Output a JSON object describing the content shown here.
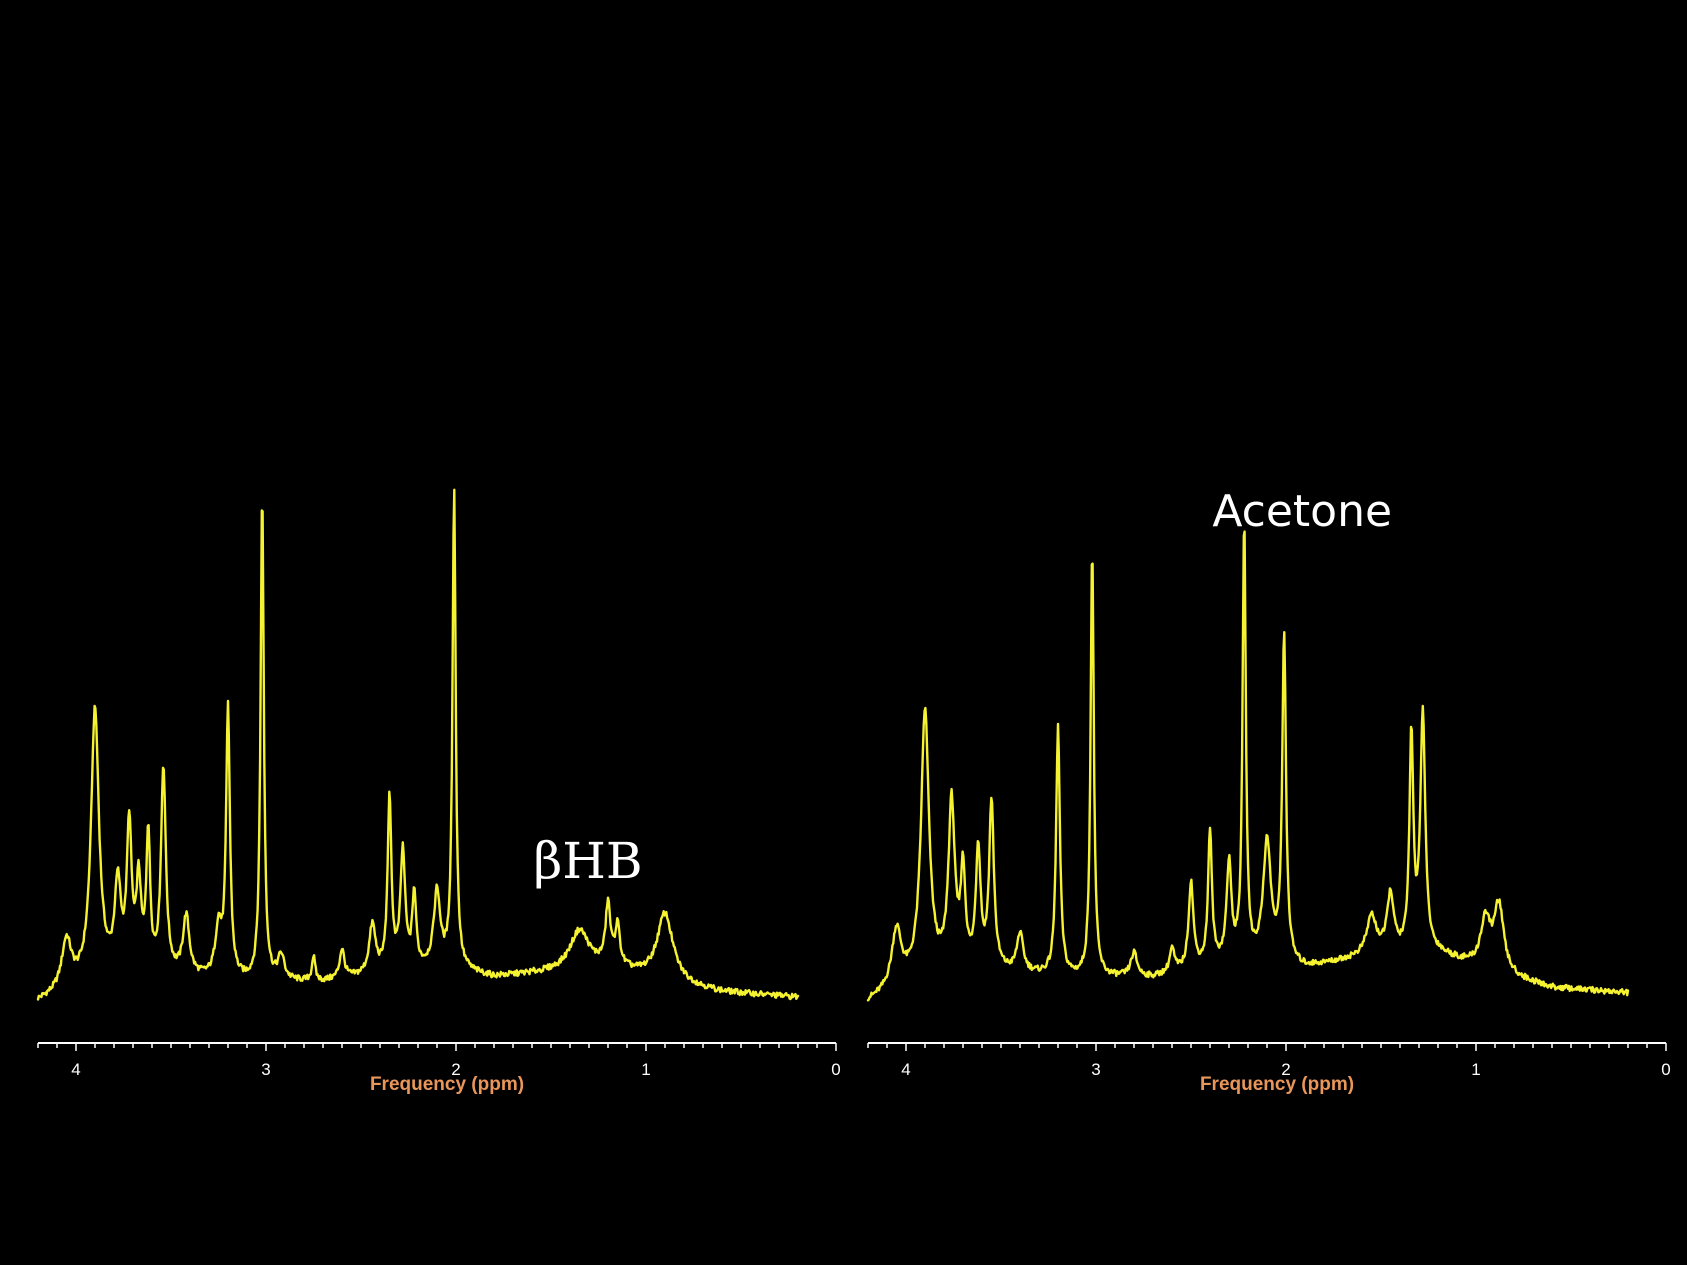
{
  "chart_data": [
    {
      "type": "line",
      "xlabel": "Frequency (ppm)",
      "x_reversed": true,
      "xlim": [
        4.2,
        0
      ],
      "x_ticks": [
        4,
        3,
        2,
        1,
        0
      ],
      "annotation": {
        "text": "βHB",
        "x": 1.2
      },
      "series": [
        {
          "baseline": [
            [
              4.2,
              0.02
            ],
            [
              3.9,
              0.06
            ],
            [
              3.5,
              0.07
            ],
            [
              3.1,
              0.06
            ],
            [
              2.7,
              0.06
            ],
            [
              2.1,
              0.09
            ],
            [
              1.8,
              0.07
            ],
            [
              1.5,
              0.08
            ],
            [
              1.2,
              0.09
            ],
            [
              0.9,
              0.06
            ],
            [
              0.6,
              0.04
            ],
            [
              0.2,
              0.03
            ]
          ],
          "peaks": [
            [
              4.05,
              0.1,
              0.03
            ],
            [
              3.9,
              0.55,
              0.025
            ],
            [
              3.78,
              0.18,
              0.02
            ],
            [
              3.72,
              0.3,
              0.015
            ],
            [
              3.67,
              0.18,
              0.015
            ],
            [
              3.62,
              0.28,
              0.012
            ],
            [
              3.54,
              0.42,
              0.015
            ],
            [
              3.42,
              0.12,
              0.02
            ],
            [
              3.25,
              0.1,
              0.02
            ],
            [
              3.2,
              0.55,
              0.012
            ],
            [
              3.02,
              1.0,
              0.01
            ],
            [
              2.92,
              0.05,
              0.02
            ],
            [
              2.75,
              0.05,
              0.01
            ],
            [
              2.6,
              0.06,
              0.015
            ],
            [
              2.44,
              0.1,
              0.02
            ],
            [
              2.35,
              0.35,
              0.012
            ],
            [
              2.28,
              0.24,
              0.015
            ],
            [
              2.22,
              0.15,
              0.012
            ],
            [
              2.1,
              0.15,
              0.02
            ],
            [
              2.01,
              0.98,
              0.01
            ],
            [
              1.35,
              0.08,
              0.06
            ],
            [
              1.2,
              0.12,
              0.015
            ],
            [
              1.15,
              0.08,
              0.015
            ],
            [
              0.9,
              0.14,
              0.05
            ]
          ]
        }
      ]
    },
    {
      "type": "line",
      "xlabel": "Frequency (ppm)",
      "x_reversed": true,
      "xlim": [
        4.2,
        0
      ],
      "x_ticks": [
        4,
        3,
        2,
        1,
        0
      ],
      "annotation": {
        "text": "Acetone",
        "x": 2.22
      },
      "series": [
        {
          "baseline": [
            [
              4.2,
              0.02
            ],
            [
              3.9,
              0.07
            ],
            [
              3.5,
              0.08
            ],
            [
              3.1,
              0.07
            ],
            [
              2.7,
              0.07
            ],
            [
              2.3,
              0.1
            ],
            [
              1.9,
              0.09
            ],
            [
              1.5,
              0.12
            ],
            [
              1.2,
              0.12
            ],
            [
              0.9,
              0.08
            ],
            [
              0.6,
              0.05
            ],
            [
              0.2,
              0.04
            ]
          ],
          "peaks": [
            [
              4.05,
              0.12,
              0.03
            ],
            [
              3.9,
              0.55,
              0.025
            ],
            [
              3.76,
              0.35,
              0.02
            ],
            [
              3.7,
              0.2,
              0.015
            ],
            [
              3.62,
              0.25,
              0.015
            ],
            [
              3.55,
              0.35,
              0.015
            ],
            [
              3.4,
              0.08,
              0.02
            ],
            [
              3.2,
              0.52,
              0.012
            ],
            [
              3.02,
              0.9,
              0.01
            ],
            [
              2.8,
              0.05,
              0.02
            ],
            [
              2.6,
              0.05,
              0.015
            ],
            [
              2.5,
              0.18,
              0.015
            ],
            [
              2.4,
              0.28,
              0.012
            ],
            [
              2.3,
              0.2,
              0.015
            ],
            [
              2.22,
              0.92,
              0.01
            ],
            [
              2.1,
              0.25,
              0.025
            ],
            [
              2.01,
              0.68,
              0.012
            ],
            [
              1.55,
              0.08,
              0.03
            ],
            [
              1.45,
              0.12,
              0.02
            ],
            [
              1.34,
              0.45,
              0.012
            ],
            [
              1.28,
              0.5,
              0.015
            ],
            [
              0.95,
              0.1,
              0.03
            ],
            [
              0.88,
              0.14,
              0.03
            ]
          ]
        }
      ]
    }
  ]
}
